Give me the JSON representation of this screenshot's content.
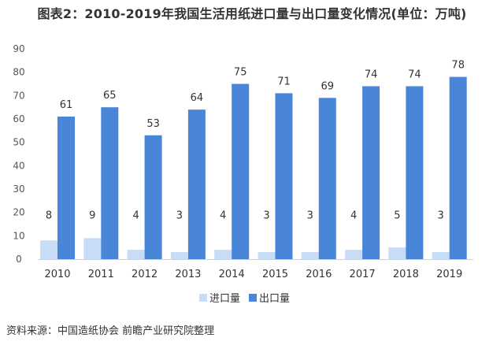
{
  "title": "图表2：2010-2019年我国生活用纸进口量与出口量变化情况(单位：万吨)",
  "source": "资料来源：中国造纸协会 前瞻产业研究院整理",
  "chart_data": {
    "type": "bar",
    "title": "图表2：2010-2019年我国生活用纸进口量与出口量变化情况(单位：万吨)",
    "categories": [
      "2010",
      "2011",
      "2012",
      "2013",
      "2014",
      "2015",
      "2016",
      "2017",
      "2018",
      "2019"
    ],
    "series": [
      {
        "name": "进口量",
        "values": [
          8,
          9,
          4,
          3,
          4,
          3,
          3,
          4,
          5,
          3
        ],
        "color": "#c6dcf7"
      },
      {
        "name": "出口量",
        "values": [
          61,
          65,
          53,
          64,
          75,
          71,
          69,
          74,
          74,
          78
        ],
        "color": "#4a86d8"
      }
    ],
    "ylim": [
      0,
      90
    ],
    "yticks": [
      "0",
      "10",
      "20",
      "30",
      "40",
      "50",
      "60",
      "70",
      "80",
      "90"
    ],
    "xlabel": "",
    "ylabel": "",
    "grid": false,
    "legend_position": "bottom",
    "data_labels": true
  }
}
